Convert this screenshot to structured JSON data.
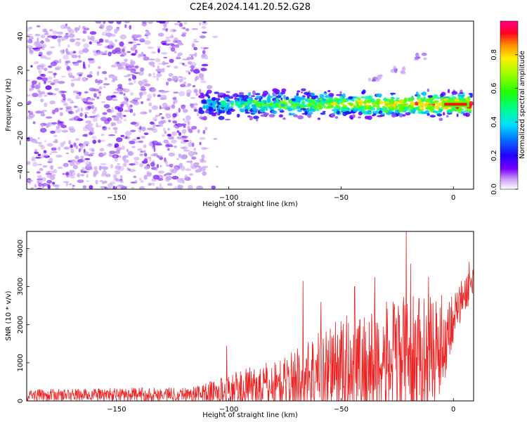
{
  "title": "C2E4.2024.141.20.52.G28",
  "colorbar": {
    "label": "Normalized spectral amplitude",
    "ticks": [
      "0.0",
      "0.2",
      "0.4",
      "0.6",
      "0.8"
    ],
    "tick_values": [
      0.0,
      0.2,
      0.4,
      0.6,
      0.8
    ],
    "range": [
      0,
      1
    ],
    "colormap": "gist_rainbow_r"
  },
  "chart_data": [
    {
      "type": "heatmap",
      "xlabel": "Height of straight line (km)",
      "ylabel": "Frequency (Hz)",
      "xlim": [
        -190,
        9
      ],
      "ylim": [
        -50,
        49
      ],
      "xticks": [
        -150,
        -100,
        -50,
        0
      ],
      "yticks": [
        -40,
        -20,
        0,
        20,
        40
      ],
      "features": {
        "noise_region_x": [
          -190,
          -110
        ],
        "ridge_x": [
          -113,
          8
        ],
        "ridge_y": 0,
        "ridge_halfwidth": 5,
        "weak_branch": [
          [
            -35,
            15
          ],
          [
            -25,
            20
          ],
          [
            -15,
            28
          ]
        ],
        "saturated_segment": [
          [
            -5,
            0
          ],
          [
            7,
            0
          ]
        ]
      }
    },
    {
      "type": "line",
      "color": "#ee2222",
      "xlabel": "Height of straight line (km)",
      "ylabel": "SNR (10 * v/v)",
      "xlim": [
        -190,
        9
      ],
      "ylim": [
        0,
        4450
      ],
      "xticks": [
        -150,
        -100,
        -50,
        0
      ],
      "yticks": [
        0,
        1000,
        2000,
        3000,
        4000
      ],
      "anchors": [
        {
          "x": -190,
          "base": 150,
          "amp": 150
        },
        {
          "x": -115,
          "base": 180,
          "amp": 200
        },
        {
          "x": -105,
          "base": 250,
          "amp": 350
        },
        {
          "x": -90,
          "base": 350,
          "amp": 550
        },
        {
          "x": -75,
          "base": 450,
          "amp": 700
        },
        {
          "x": -65,
          "base": 700,
          "amp": 1000
        },
        {
          "x": -50,
          "base": 900,
          "amp": 1300
        },
        {
          "x": -35,
          "base": 950,
          "amp": 1500
        },
        {
          "x": -25,
          "base": 1050,
          "amp": 1700
        },
        {
          "x": -15,
          "base": 1150,
          "amp": 1600
        },
        {
          "x": -5,
          "base": 1500,
          "amp": 1300
        },
        {
          "x": 0,
          "base": 2200,
          "amp": 700
        },
        {
          "x": 9,
          "base": 3200,
          "amp": 400
        }
      ],
      "spikes": [
        [
          -101,
          1450
        ],
        [
          -67,
          3150
        ],
        [
          -59,
          2600
        ],
        [
          -44,
          3000
        ],
        [
          -35,
          3250
        ],
        [
          -21,
          4450
        ],
        [
          -19,
          3600
        ],
        [
          -11,
          3250
        ],
        [
          7,
          3650
        ]
      ]
    }
  ]
}
